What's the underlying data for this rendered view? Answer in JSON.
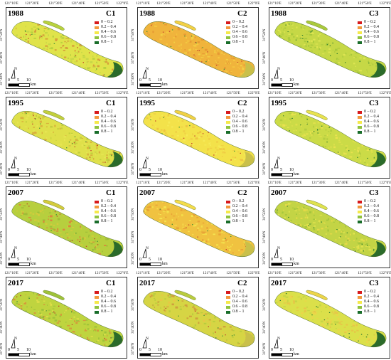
{
  "lon_ticks": [
    "121°10'E",
    "121°20'E",
    "121°30'E",
    "121°40'E",
    "121°50'E",
    "122°0'E"
  ],
  "lat_ticks": [
    "31°50'N",
    "31°40'N",
    "31°30'N"
  ],
  "legend": [
    {
      "label": "0 – 0.2",
      "color": "#d7191c"
    },
    {
      "label": "0.2 – 0.4",
      "color": "#f29a3e"
    },
    {
      "label": "0.4 – 0.6",
      "color": "#f5e94a"
    },
    {
      "label": "0.6 – 0.8",
      "color": "#8fc23f"
    },
    {
      "label": "0.8 – 1",
      "color": "#1a6e2a"
    }
  ],
  "scale": {
    "ticks": [
      "0",
      "5",
      "10"
    ],
    "unit": "km"
  },
  "north_label": "N",
  "panels": [
    {
      "year": "1988",
      "component": "C1",
      "palette": [
        "#e0e34a",
        "#b8d13e",
        "#d6a13a",
        "#c7d848"
      ]
    },
    {
      "year": "1988",
      "component": "C2",
      "palette": [
        "#f0b43c",
        "#f2d045",
        "#e79a34",
        "#f5c640"
      ]
    },
    {
      "year": "1988",
      "component": "C3",
      "palette": [
        "#c6d846",
        "#a9c93c",
        "#dde451",
        "#b6cf42"
      ]
    },
    {
      "year": "1995",
      "component": "C1",
      "palette": [
        "#dfe04a",
        "#c2cf3d",
        "#d9b23c",
        "#e6e552"
      ]
    },
    {
      "year": "1995",
      "component": "C2",
      "palette": [
        "#f3e24a",
        "#f0d145",
        "#f5ea57",
        "#eec442"
      ]
    },
    {
      "year": "1995",
      "component": "C3",
      "palette": [
        "#cbdb47",
        "#e8e24f",
        "#b5cd40",
        "#dfe04c"
      ]
    },
    {
      "year": "2007",
      "component": "C1",
      "palette": [
        "#b7cf3e",
        "#d3cb3c",
        "#9fbf37",
        "#d9883a"
      ]
    },
    {
      "year": "2007",
      "component": "C2",
      "palette": [
        "#f0c240",
        "#f3dc49",
        "#e8a437",
        "#f4e451"
      ]
    },
    {
      "year": "2007",
      "component": "C3",
      "palette": [
        "#c3d445",
        "#dfe24d",
        "#a6c63d",
        "#e3d948"
      ]
    },
    {
      "year": "2017",
      "component": "C1",
      "palette": [
        "#bfd43f",
        "#9ec23a",
        "#dede48",
        "#d49b3a"
      ]
    },
    {
      "year": "2017",
      "component": "C2",
      "palette": [
        "#d6d544",
        "#b9cc3e",
        "#e8c744",
        "#cfa03d"
      ]
    },
    {
      "year": "2017",
      "component": "C3",
      "palette": [
        "#dbe04a",
        "#ecd549",
        "#c6d546",
        "#e6c747"
      ]
    }
  ]
}
